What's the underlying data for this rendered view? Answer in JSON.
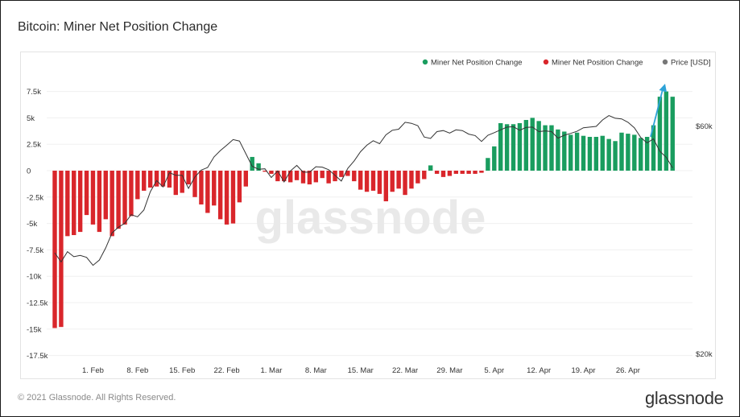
{
  "title": "Bitcoin: Miner Net Position Change",
  "footer": {
    "copyright": "© 2021 Glassnode. All Rights Reserved.",
    "logo": "glassnode"
  },
  "watermark": "glassnode",
  "colors": {
    "positive": "#1a9d5f",
    "negative": "#d9262b",
    "price": "#333333",
    "arrow": "#2ea3d8"
  },
  "chart_data": {
    "type": "bar",
    "x_start": "2021-01-26",
    "x_ticks": [
      "1. Feb",
      "8. Feb",
      "15. Feb",
      "22. Feb",
      "1. Mar",
      "8. Mar",
      "15. Mar",
      "22. Mar",
      "29. Mar",
      "5. Apr",
      "12. Apr",
      "19. Apr",
      "26. Apr"
    ],
    "y_left_ticks": [
      7500,
      5000,
      2500,
      0,
      -2500,
      -5000,
      -7500,
      -10000,
      -12500,
      -15000,
      -17500
    ],
    "y_left_tick_labels": [
      "7.5k",
      "5k",
      "2.5k",
      "0",
      "-2.5k",
      "-5k",
      "-7.5k",
      "-10k",
      "-12.5k",
      "-15k",
      "-17.5k"
    ],
    "y_left_range": [
      -17500,
      7500
    ],
    "y_right_ticks": [
      60000,
      20000
    ],
    "y_right_tick_labels": [
      "$60k",
      "$20k"
    ],
    "y_right_scale": "log",
    "grid": true,
    "legend_position": "top-right",
    "legend": [
      {
        "label": "Miner Net Position Change",
        "color": "#1a9d5f"
      },
      {
        "label": "Miner Net Position Change",
        "color": "#d9262b"
      },
      {
        "label": "Price [USD]",
        "color": "#777777"
      }
    ],
    "series": [
      {
        "name": "Miner Net Position Change",
        "values": [
          -14900,
          -14800,
          -6200,
          -6100,
          -5800,
          -4200,
          -5100,
          -5800,
          -4600,
          -6200,
          -5500,
          -5100,
          -4300,
          -2700,
          -1900,
          -1600,
          -1500,
          -1500,
          -1600,
          -2300,
          -2100,
          -1300,
          -2500,
          -3200,
          -4000,
          -3300,
          -4600,
          -5100,
          -5000,
          -3000,
          -1500,
          1300,
          700,
          -100,
          -300,
          -1000,
          -1000,
          -1100,
          -900,
          -1200,
          -1300,
          -1100,
          -700,
          -1200,
          -1000,
          -600,
          -500,
          -1000,
          -1800,
          -2000,
          -1900,
          -2200,
          -2900,
          -2000,
          -1700,
          -2300,
          -1700,
          -1200,
          -800,
          500,
          -300,
          -600,
          -500,
          -300,
          -300,
          -300,
          -300,
          -200,
          1200,
          2300,
          4500,
          4400,
          4400,
          4500,
          4800,
          5000,
          4700,
          4300,
          4300,
          3900,
          3700,
          3400,
          3600,
          3300,
          3200,
          3200,
          3300,
          3000,
          2800,
          3600,
          3500,
          3400,
          3100,
          3200,
          4300,
          7000,
          7500,
          7000
        ],
        "price": [
          32600,
          31200,
          32800,
          32000,
          32200,
          31900,
          30700,
          31500,
          33400,
          35900,
          36900,
          37600,
          39200,
          38800,
          40100,
          43800,
          46200,
          44800,
          48000,
          47400,
          47400,
          44500,
          47000,
          48600,
          49200,
          51800,
          53400,
          54800,
          56300,
          55900,
          52600,
          49500,
          48800,
          48900,
          46900,
          48400,
          45900,
          48400,
          49700,
          48100,
          48100,
          49400,
          49300,
          48700,
          47400,
          46100,
          49000,
          50800,
          53100,
          54800,
          56000,
          55200,
          57600,
          58900,
          59200,
          61200,
          60900,
          60200,
          57000,
          56600,
          58500,
          58800,
          58100,
          59000,
          58800,
          57800,
          57400,
          55800,
          57500,
          58200,
          59000,
          59800,
          59900,
          58900,
          59700,
          59800,
          58500,
          58700,
          58500,
          56700,
          57500,
          58000,
          58600,
          59600,
          59800,
          60000,
          61900,
          63200,
          62400,
          62200,
          61200,
          59600,
          56900,
          55400,
          56500,
          53200,
          51700,
          49100
        ]
      }
    ]
  }
}
